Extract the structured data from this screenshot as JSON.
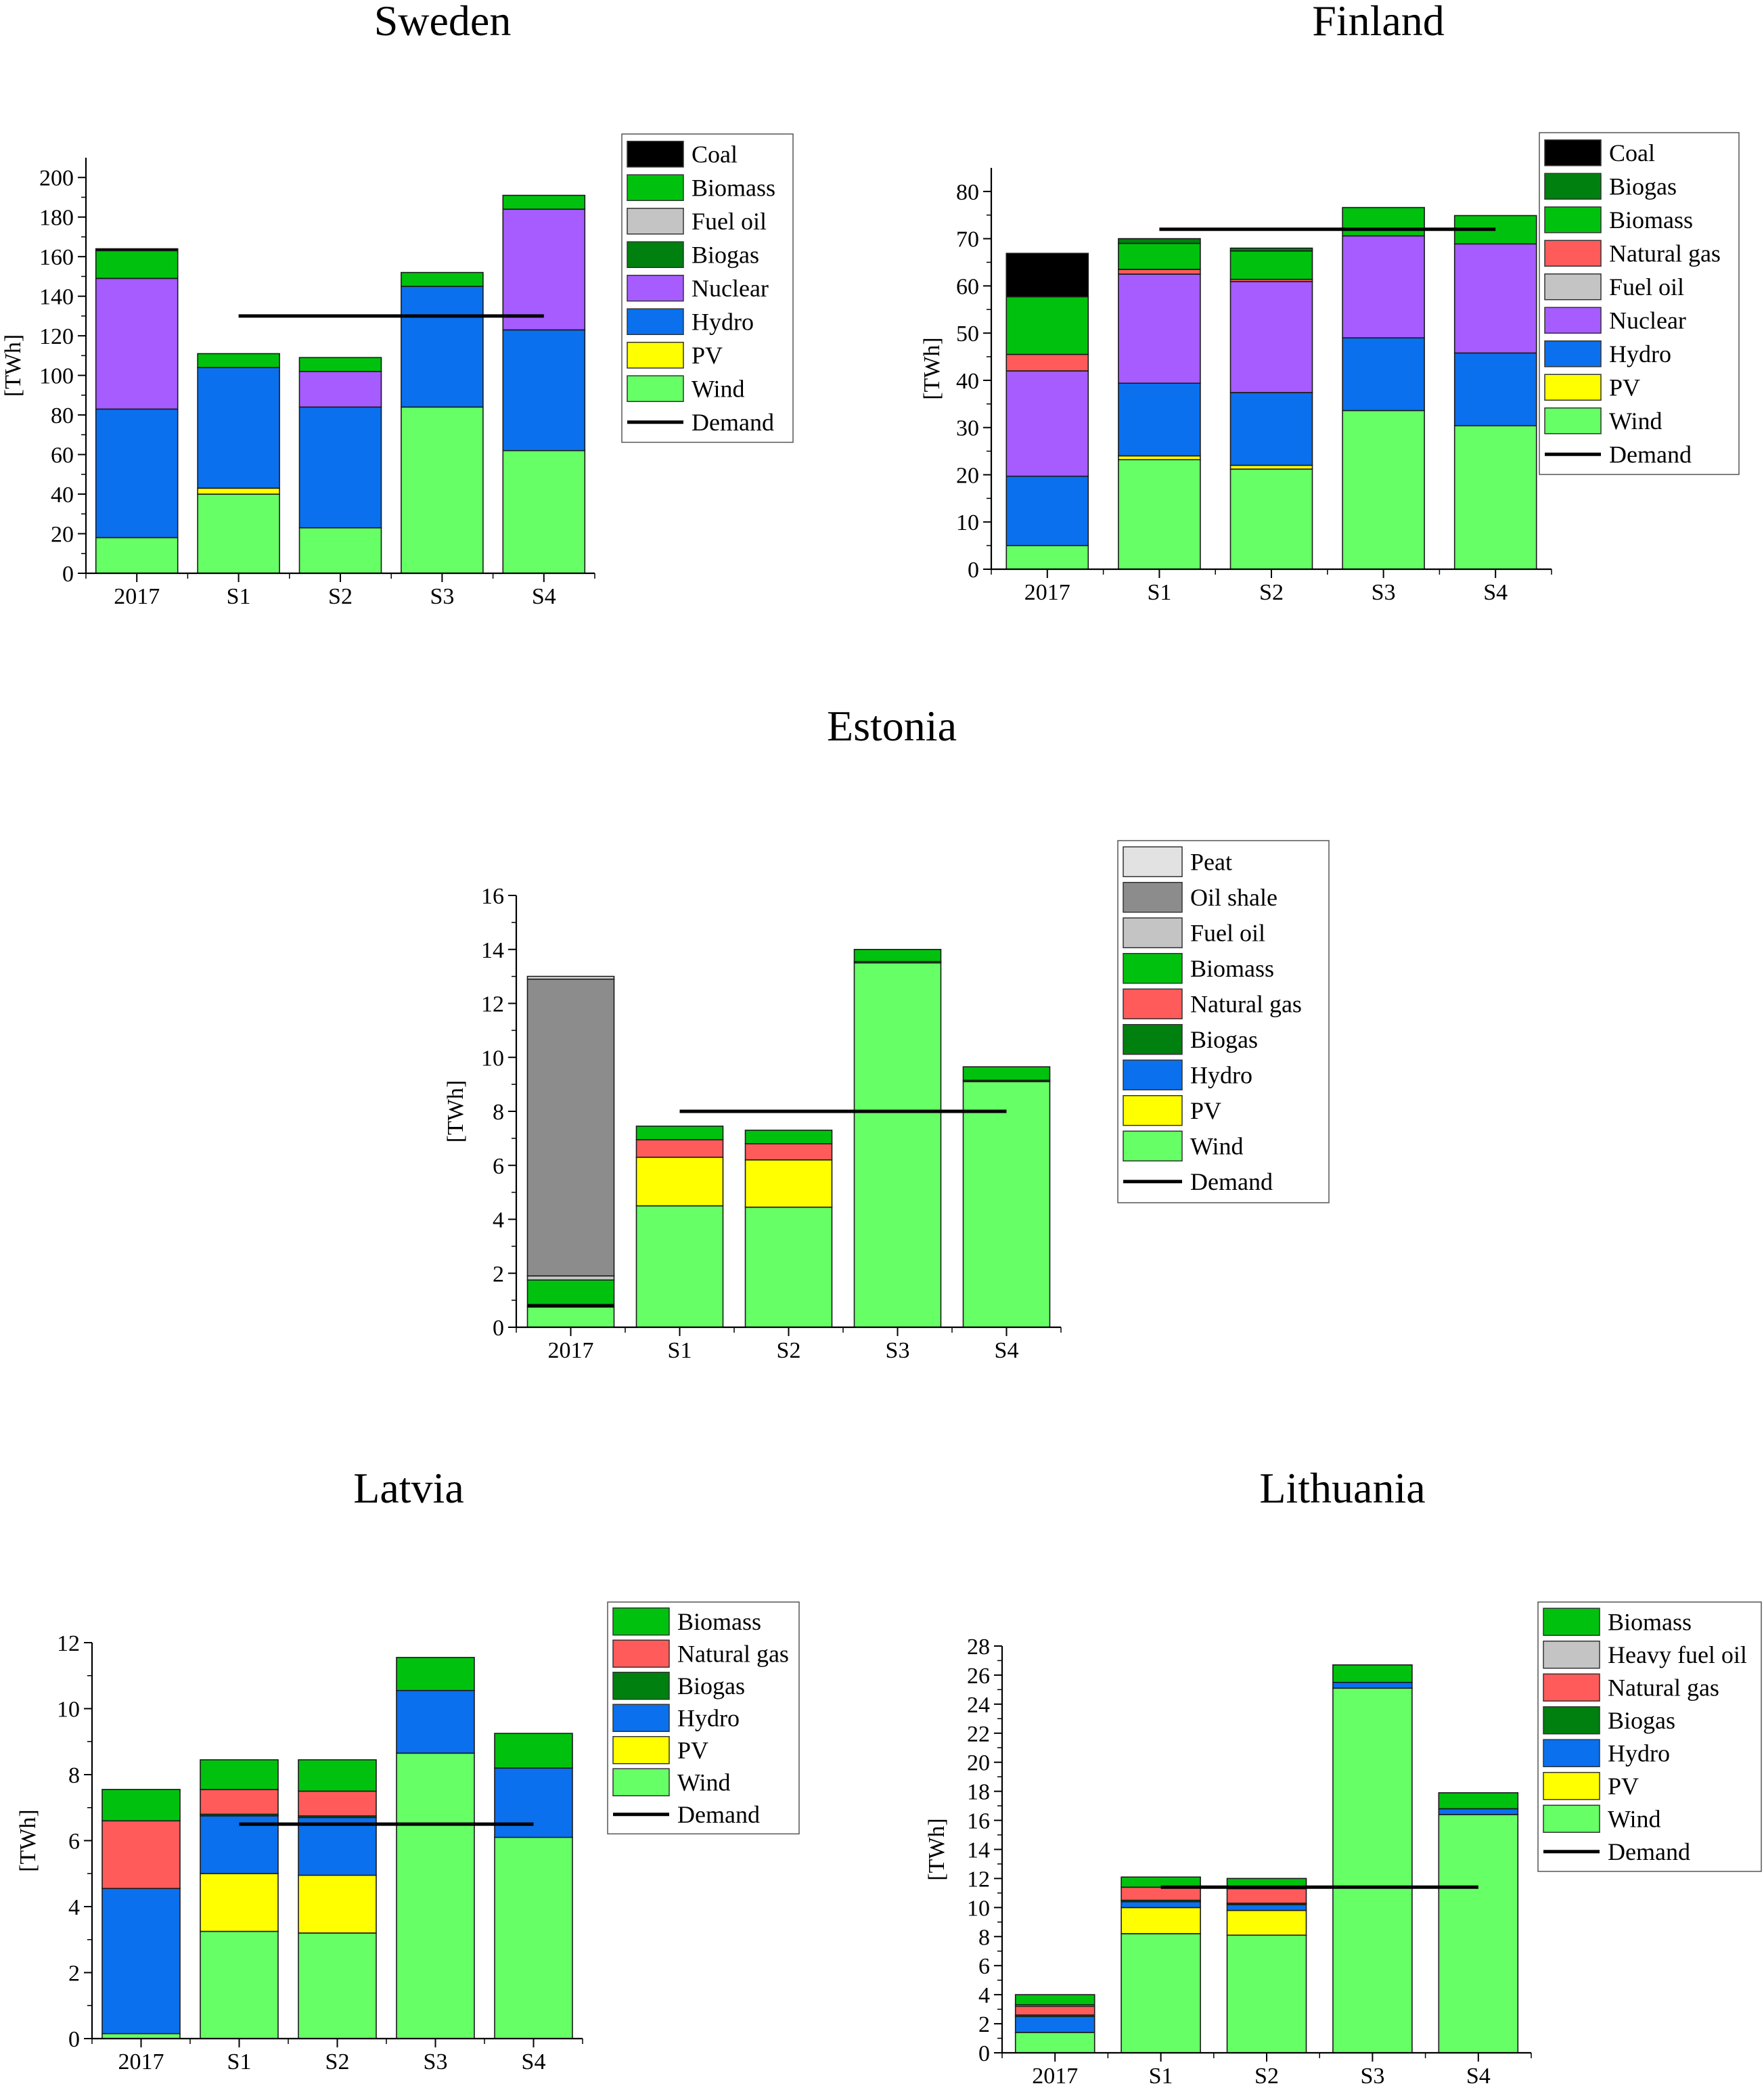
{
  "colors": {
    "Coal": "#000000",
    "Biogas": "#00800f",
    "Biomass": "#00c20e",
    "Natural gas": "#ff5b5b",
    "Fuel oil": "#c4c4c4",
    "Heavy fuel oil": "#c4c4c4",
    "Peat": "#e2e2e2",
    "Oil shale": "#8c8c8c",
    "Nuclear": "#a65cff",
    "Hydro": "#0a70ee",
    "PV": "#ffff00",
    "Wind": "#66ff66",
    "Demand": "#000000"
  },
  "chart_data": [
    {
      "type": "bar",
      "stacked": true,
      "title": "Sweden",
      "ylabel": "[TWh]",
      "categories": [
        "2017",
        "S1",
        "S2",
        "S3",
        "S4"
      ],
      "ylim": [
        0,
        210
      ],
      "yticks": [
        0,
        20,
        40,
        60,
        80,
        100,
        120,
        140,
        160,
        180,
        200
      ],
      "legend": [
        "Coal",
        "Biomass",
        "Fuel oil",
        "Biogas",
        "Nuclear",
        "Hydro",
        "PV",
        "Wind",
        "Demand"
      ],
      "series": [
        {
          "name": "Wind",
          "values": [
            18,
            40,
            23,
            84,
            62
          ]
        },
        {
          "name": "PV",
          "values": [
            0,
            3,
            0,
            0,
            0
          ]
        },
        {
          "name": "Hydro",
          "values": [
            65,
            61,
            61,
            61,
            61
          ]
        },
        {
          "name": "Nuclear",
          "values": [
            66,
            0,
            18,
            0,
            61
          ]
        },
        {
          "name": "Biogas",
          "values": [
            0,
            0,
            0,
            0,
            0
          ]
        },
        {
          "name": "Fuel oil",
          "values": [
            0,
            0,
            0,
            0,
            0
          ]
        },
        {
          "name": "Biomass",
          "values": [
            14,
            7,
            7,
            7,
            7
          ]
        },
        {
          "name": "Coal",
          "values": [
            1,
            0,
            0,
            0,
            0
          ]
        }
      ],
      "demand": {
        "value": 130,
        "from": "S1",
        "to": "S4"
      }
    },
    {
      "type": "bar",
      "stacked": true,
      "title": "Finland",
      "ylabel": "[TWh]",
      "categories": [
        "2017",
        "S1",
        "S2",
        "S3",
        "S4"
      ],
      "ylim": [
        0,
        85
      ],
      "yticks": [
        0,
        10,
        20,
        30,
        40,
        50,
        60,
        70,
        80
      ],
      "legend": [
        "Coal",
        "Biogas",
        "Biomass",
        "Natural gas",
        "Fuel oil",
        "Nuclear",
        "Hydro",
        "PV",
        "Wind",
        "Demand"
      ],
      "series": [
        {
          "name": "Wind",
          "values": [
            5,
            23.2,
            21.2,
            33.6,
            30.4
          ]
        },
        {
          "name": "PV",
          "values": [
            0,
            0.8,
            0.8,
            0,
            0
          ]
        },
        {
          "name": "Hydro",
          "values": [
            14.7,
            15.4,
            15.4,
            15.4,
            15.4
          ]
        },
        {
          "name": "Nuclear",
          "values": [
            22.3,
            23.1,
            23.5,
            21.6,
            23.1
          ]
        },
        {
          "name": "Fuel oil",
          "values": [
            0,
            0,
            0,
            0,
            0
          ]
        },
        {
          "name": "Natural gas",
          "values": [
            3.5,
            1,
            0.5,
            0,
            0
          ]
        },
        {
          "name": "Biomass",
          "values": [
            12.2,
            5.5,
            6,
            6,
            6
          ]
        },
        {
          "name": "Biogas",
          "values": [
            0,
            1,
            0.6,
            0,
            0
          ]
        },
        {
          "name": "Coal",
          "values": [
            9.2,
            0,
            0,
            0,
            0
          ]
        }
      ],
      "demand": {
        "value": 72,
        "from": "S1",
        "to": "S4"
      }
    },
    {
      "type": "bar",
      "stacked": true,
      "title": "Estonia",
      "ylabel": "[TWh]",
      "categories": [
        "2017",
        "S1",
        "S2",
        "S3",
        "S4"
      ],
      "ylim": [
        0,
        16
      ],
      "yticks": [
        0,
        2,
        4,
        6,
        8,
        10,
        12,
        14,
        16
      ],
      "legend": [
        "Peat",
        "Oil shale",
        "Fuel oil",
        "Biomass",
        "Natural gas",
        "Biogas",
        "Hydro",
        "PV",
        "Wind",
        "Demand"
      ],
      "series": [
        {
          "name": "Wind",
          "values": [
            0.75,
            4.5,
            4.45,
            13.5,
            9.1
          ]
        },
        {
          "name": "PV",
          "values": [
            0,
            1.8,
            1.75,
            0,
            0
          ]
        },
        {
          "name": "Hydro",
          "values": [
            0,
            0,
            0,
            0,
            0
          ]
        },
        {
          "name": "Biogas",
          "values": [
            0,
            0,
            0,
            0.05,
            0.05
          ]
        },
        {
          "name": "Natural gas",
          "values": [
            0,
            0.65,
            0.6,
            0,
            0
          ]
        },
        {
          "name": "Biomass",
          "values": [
            1,
            0.5,
            0.5,
            0.45,
            0.5
          ]
        },
        {
          "name": "Fuel oil",
          "values": [
            0.15,
            0,
            0,
            0,
            0
          ]
        },
        {
          "name": "Oil shale",
          "values": [
            11,
            0,
            0,
            0,
            0
          ]
        },
        {
          "name": "Peat",
          "values": [
            0.1,
            0,
            0,
            0,
            0
          ]
        }
      ],
      "demand": {
        "value": 8,
        "from": "S1",
        "to": "S4"
      },
      "demand_2017": 0.8
    },
    {
      "type": "bar",
      "stacked": true,
      "title": "Latvia",
      "ylabel": "[TWh]",
      "categories": [
        "2017",
        "S1",
        "S2",
        "S3",
        "S4"
      ],
      "ylim": [
        0,
        12
      ],
      "yticks": [
        0,
        2,
        4,
        6,
        8,
        10,
        12
      ],
      "legend": [
        "Biomass",
        "Natural gas",
        "Biogas",
        "Hydro",
        "PV",
        "Wind",
        "Demand"
      ],
      "series": [
        {
          "name": "Wind",
          "values": [
            0.15,
            3.25,
            3.2,
            8.65,
            6.1
          ]
        },
        {
          "name": "PV",
          "values": [
            0,
            1.75,
            1.75,
            0,
            0
          ]
        },
        {
          "name": "Hydro",
          "values": [
            4.4,
            1.75,
            1.75,
            1.9,
            2.1
          ]
        },
        {
          "name": "Biogas",
          "values": [
            0,
            0.05,
            0.05,
            0,
            0
          ]
        },
        {
          "name": "Natural gas",
          "values": [
            2.05,
            0.75,
            0.75,
            0,
            0
          ]
        },
        {
          "name": "Biomass",
          "values": [
            0.95,
            0.9,
            0.95,
            1,
            1.05
          ]
        }
      ],
      "demand": {
        "value": 6.5,
        "from": "S1",
        "to": "S4"
      }
    },
    {
      "type": "bar",
      "stacked": true,
      "title": "Lithuania",
      "ylabel": "[TWh]",
      "categories": [
        "2017",
        "S1",
        "S2",
        "S3",
        "S4"
      ],
      "ylim": [
        0,
        28
      ],
      "yticks": [
        0,
        2,
        4,
        6,
        8,
        10,
        12,
        14,
        16,
        18,
        20,
        22,
        24,
        26,
        28
      ],
      "legend": [
        "Biomass",
        "Heavy fuel oil",
        "Natural gas",
        "Biogas",
        "Hydro",
        "PV",
        "Wind",
        "Demand"
      ],
      "series": [
        {
          "name": "Wind",
          "values": [
            1.4,
            8.2,
            8.1,
            25.1,
            16.4
          ]
        },
        {
          "name": "PV",
          "values": [
            0,
            1.8,
            1.7,
            0,
            0
          ]
        },
        {
          "name": "Hydro",
          "values": [
            1.1,
            0.4,
            0.4,
            0.4,
            0.4
          ]
        },
        {
          "name": "Biogas",
          "values": [
            0.1,
            0.1,
            0.1,
            0,
            0
          ]
        },
        {
          "name": "Natural gas",
          "values": [
            0.6,
            0.9,
            1,
            0,
            0
          ]
        },
        {
          "name": "Heavy fuel oil",
          "values": [
            0.1,
            0,
            0,
            0,
            0
          ]
        },
        {
          "name": "Biomass",
          "values": [
            0.7,
            0.7,
            0.7,
            1.2,
            1.1
          ]
        }
      ],
      "demand": {
        "value": 11.4,
        "from": "S1",
        "to": "S4"
      }
    }
  ]
}
